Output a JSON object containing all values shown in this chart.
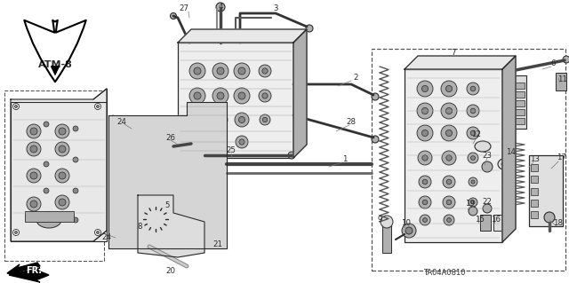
{
  "background_color": "#ffffff",
  "atm_label": "ATM-8",
  "fr_label": "FR.",
  "diagram_code": "TA04A0810",
  "line_color": "#2a2a2a",
  "gray_fill": "#c8c8c8",
  "light_gray": "#e8e8e8",
  "mid_gray": "#b0b0b0",
  "dark_gray": "#888888",
  "dashed_color": "#555555"
}
